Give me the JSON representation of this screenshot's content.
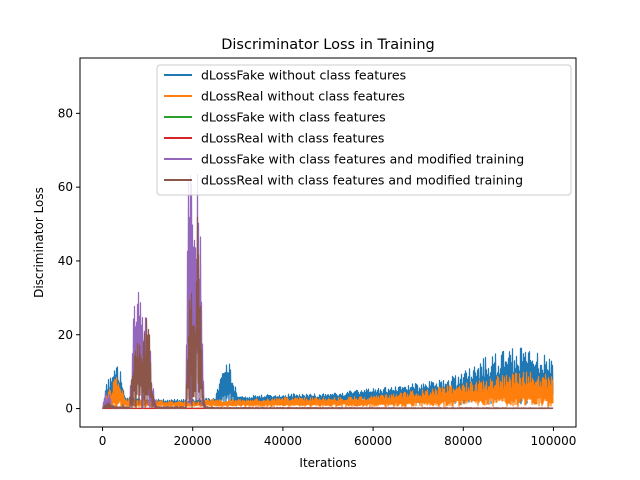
{
  "chart_data": {
    "type": "line",
    "title": "Discriminator Loss in Training",
    "xlabel": "Iterations",
    "ylabel": "Discriminator Loss",
    "xlim": [
      -5000,
      105000
    ],
    "ylim": [
      -5,
      95
    ],
    "xticks": [
      0,
      20000,
      40000,
      60000,
      80000,
      100000
    ],
    "xtick_labels": [
      "0",
      "20000",
      "40000",
      "60000",
      "80000",
      "100000"
    ],
    "yticks": [
      0,
      20,
      40,
      60,
      80
    ],
    "ytick_labels": [
      "0",
      "20",
      "40",
      "60",
      "80"
    ],
    "grid": false,
    "legend_position": "top-right",
    "series": [
      {
        "name": "dLossFake without class features",
        "color": "#1f77b4",
        "x": [
          0,
          1000,
          2000,
          3000,
          4000,
          5000,
          7000,
          10000,
          15000,
          20000,
          25000,
          27500,
          30000,
          40000,
          50000,
          60000,
          65000,
          70000,
          75000,
          80000,
          85000,
          90000,
          93000,
          95000,
          98000,
          100000
        ],
        "low": [
          0,
          0.5,
          0.3,
          0.3,
          0.5,
          0.5,
          0.8,
          1.0,
          1.0,
          1.0,
          1.0,
          1.2,
          1.2,
          1.5,
          1.5,
          2.0,
          2.0,
          1.5,
          1.5,
          1.0,
          1.0,
          1.0,
          1.0,
          1.0,
          1.0,
          1.0
        ],
        "high": [
          0,
          8.5,
          8.5,
          12,
          10,
          4,
          3,
          2.5,
          2.5,
          2.5,
          3.0,
          15.2,
          3.5,
          4.0,
          4.0,
          5.5,
          6.0,
          7.0,
          8.0,
          10,
          14,
          16,
          17.5,
          16,
          15,
          13
        ]
      },
      {
        "name": "dLossReal without class features",
        "color": "#ff7f0e",
        "x": [
          0,
          1000,
          2000,
          3000,
          4000,
          5000,
          7000,
          10000,
          15000,
          20000,
          25000,
          30000,
          40000,
          50000,
          60000,
          65000,
          70000,
          75000,
          80000,
          85000,
          90000,
          95000,
          100000
        ],
        "low": [
          0,
          0.3,
          0.3,
          0.3,
          0.3,
          0.3,
          0.5,
          0.5,
          0.5,
          0.5,
          0.5,
          0.5,
          0.5,
          0.5,
          0.5,
          0.5,
          0.5,
          0.5,
          0.5,
          0.5,
          0.5,
          0.5,
          0.5
        ],
        "high": [
          0,
          5,
          6,
          9,
          7,
          3,
          2.5,
          2.5,
          2.0,
          2.0,
          2.5,
          2.5,
          3.0,
          3.0,
          3.5,
          4.0,
          5.0,
          6.0,
          7.0,
          8.0,
          9.5,
          10,
          9
        ]
      },
      {
        "name": "dLossFake with class features",
        "color": "#2ca02c",
        "x": [
          0,
          100000
        ],
        "low": [
          0,
          0
        ],
        "high": [
          0.1,
          0.1
        ]
      },
      {
        "name": "dLossReal with class features",
        "color": "#d62728",
        "x": [
          0,
          100000
        ],
        "low": [
          0,
          0
        ],
        "high": [
          0.1,
          0.1
        ]
      },
      {
        "name": "dLossFake with class features and modified training",
        "color": "#9467bd",
        "x": [
          0,
          500,
          1000,
          1500,
          2000,
          3000,
          4000,
          6000,
          7000,
          7500,
          8000,
          8500,
          9000,
          9500,
          10000,
          10500,
          11000,
          12000,
          15000,
          18500,
          19000,
          19500,
          20000,
          20500,
          21000,
          21500,
          22000,
          22500,
          23000,
          25000,
          100000
        ],
        "low": [
          0,
          0,
          0,
          0,
          0,
          0,
          0,
          0,
          0,
          0,
          0,
          0,
          0,
          0,
          0,
          0,
          0,
          0,
          0,
          0,
          0,
          0,
          0,
          0,
          0,
          0,
          0,
          0,
          0,
          0,
          0
        ],
        "high": [
          0,
          5,
          3,
          5,
          1,
          0.5,
          0.5,
          0.5,
          28,
          36,
          42.5,
          30,
          25,
          40,
          33,
          22,
          8,
          0.5,
          0.5,
          0.5,
          70,
          89,
          72,
          40,
          65,
          63,
          30,
          2,
          0.5,
          0.3,
          0.2
        ]
      },
      {
        "name": "dLossReal with class features and modified training",
        "color": "#8c564b",
        "x": [
          0,
          1000,
          3000,
          6000,
          7000,
          7500,
          8000,
          8500,
          9000,
          9500,
          10000,
          10500,
          11000,
          12000,
          15000,
          18500,
          19000,
          19500,
          20000,
          20500,
          21000,
          21500,
          22000,
          22500,
          23000,
          25000,
          100000
        ],
        "low": [
          0,
          0,
          0,
          0,
          0,
          0,
          0,
          0,
          0,
          0,
          0,
          0,
          0,
          0,
          0,
          0,
          0,
          0,
          0,
          0,
          0,
          0,
          0,
          0,
          0,
          0,
          0
        ],
        "high": [
          0,
          2,
          0.5,
          0.5,
          20,
          24,
          25,
          22,
          19,
          25,
          27,
          20,
          6,
          0.5,
          0.5,
          0.5,
          30,
          38,
          30,
          25,
          57,
          50,
          15,
          2,
          0.5,
          0.3,
          0.2
        ]
      }
    ]
  }
}
